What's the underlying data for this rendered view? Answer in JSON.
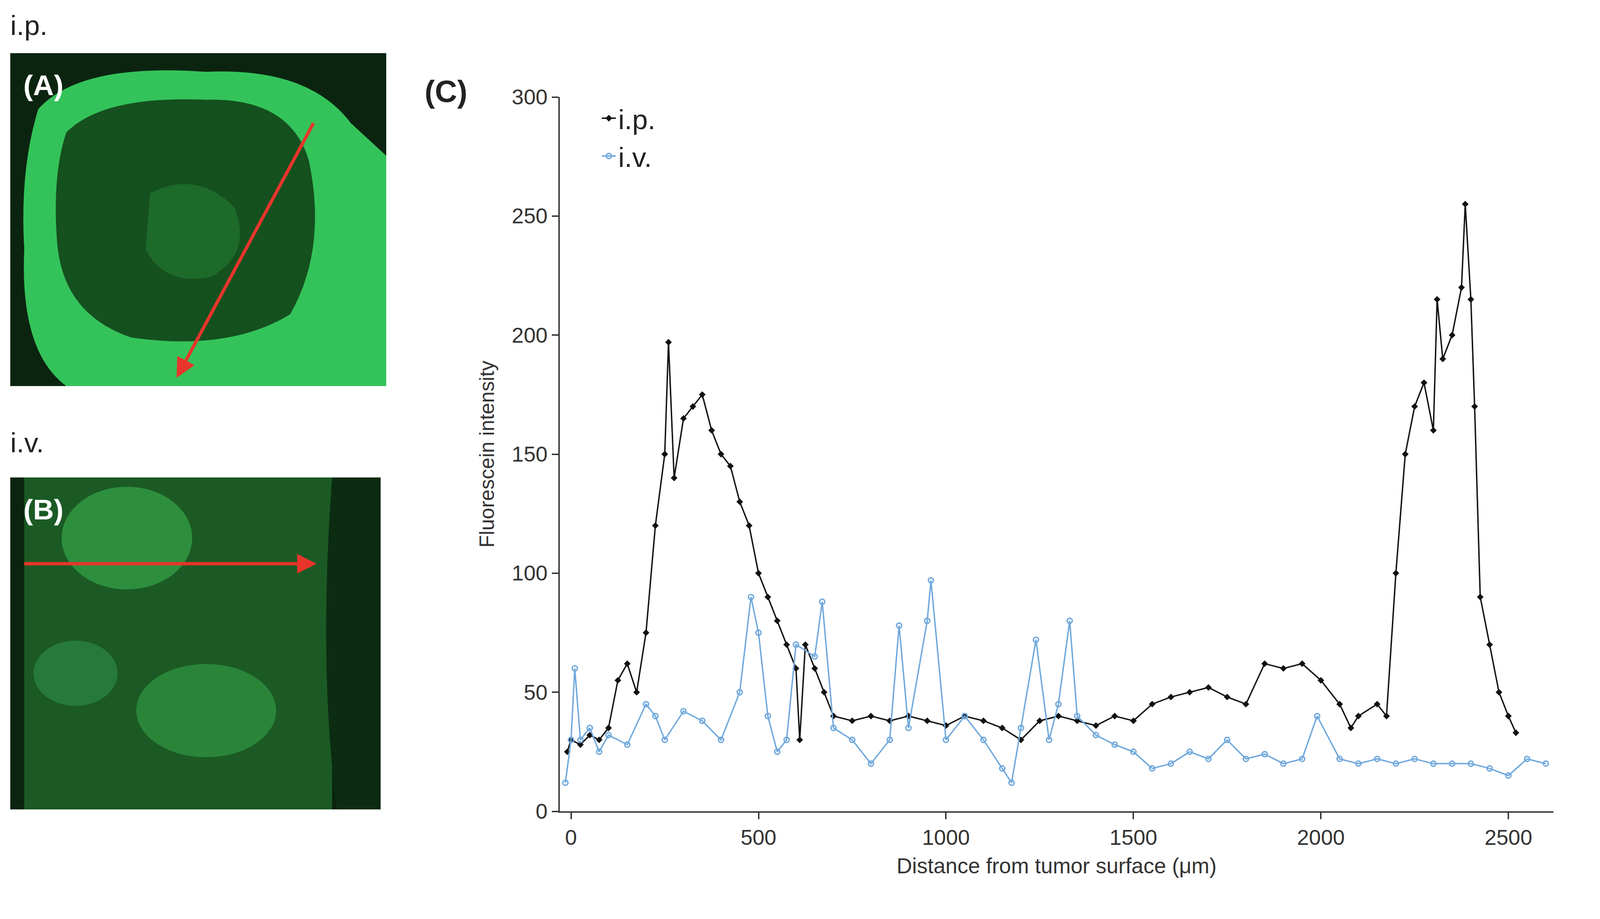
{
  "panels": [
    {
      "heading": "i.p.",
      "label": "(A)"
    },
    {
      "heading": "i.v.",
      "label": "(B)"
    }
  ],
  "chart_data": {
    "type": "line",
    "title": "(C)",
    "x_label": "Distance from tumor surface (μm)",
    "y_label": "Fluorescein intensity",
    "xlim": [
      -30,
      2620
    ],
    "ylim": [
      0,
      300
    ],
    "xticks": [
      0,
      500,
      1000,
      1500,
      2000,
      2500
    ],
    "yticks": [
      0,
      50,
      100,
      150,
      200,
      250,
      300
    ],
    "grid": false,
    "legend": "upper left",
    "series": [
      {
        "name": "i.p.",
        "color": "#111111",
        "marker": "diamond",
        "line_style": "solid",
        "x": [
          -10,
          0,
          25,
          50,
          75,
          100,
          125,
          150,
          175,
          200,
          225,
          250,
          260,
          275,
          300,
          325,
          350,
          375,
          400,
          425,
          450,
          475,
          500,
          525,
          550,
          575,
          600,
          610,
          625,
          650,
          675,
          700,
          750,
          800,
          850,
          900,
          950,
          1000,
          1050,
          1100,
          1150,
          1200,
          1250,
          1300,
          1350,
          1400,
          1450,
          1500,
          1550,
          1600,
          1650,
          1700,
          1750,
          1800,
          1850,
          1900,
          1950,
          2000,
          2050,
          2080,
          2100,
          2150,
          2175,
          2200,
          2225,
          2250,
          2275,
          2300,
          2310,
          2325,
          2350,
          2375,
          2385,
          2400,
          2410,
          2425,
          2450,
          2475,
          2500,
          2520
        ],
        "values": [
          25,
          30,
          28,
          32,
          30,
          35,
          55,
          62,
          50,
          75,
          120,
          150,
          197,
          140,
          165,
          170,
          175,
          160,
          150,
          145,
          130,
          120,
          100,
          90,
          80,
          70,
          60,
          30,
          70,
          60,
          50,
          40,
          38,
          40,
          38,
          40,
          38,
          36,
          40,
          38,
          35,
          30,
          38,
          40,
          38,
          36,
          40,
          38,
          45,
          48,
          50,
          52,
          48,
          45,
          62,
          60,
          62,
          55,
          45,
          35,
          40,
          45,
          40,
          100,
          150,
          170,
          180,
          160,
          215,
          190,
          200,
          220,
          255,
          215,
          170,
          90,
          70,
          50,
          40,
          33
        ]
      },
      {
        "name": "i.v.",
        "color": "#6fa8dc",
        "marker": "circle-open",
        "line_style": "solid",
        "x": [
          -15,
          0,
          10,
          25,
          50,
          75,
          100,
          150,
          200,
          225,
          250,
          300,
          350,
          400,
          450,
          480,
          500,
          525,
          550,
          575,
          600,
          650,
          670,
          700,
          750,
          800,
          850,
          875,
          900,
          950,
          960,
          1000,
          1050,
          1100,
          1150,
          1175,
          1200,
          1240,
          1275,
          1300,
          1330,
          1350,
          1400,
          1450,
          1500,
          1550,
          1600,
          1650,
          1700,
          1750,
          1800,
          1850,
          1900,
          1950,
          1990,
          2050,
          2100,
          2150,
          2200,
          2250,
          2300,
          2350,
          2400,
          2450,
          2500,
          2550,
          2600
        ],
        "values": [
          12,
          30,
          60,
          30,
          35,
          25,
          32,
          28,
          45,
          40,
          30,
          42,
          38,
          30,
          50,
          90,
          75,
          40,
          25,
          30,
          70,
          65,
          88,
          35,
          30,
          20,
          30,
          78,
          35,
          80,
          97,
          30,
          40,
          30,
          18,
          12,
          35,
          72,
          30,
          45,
          80,
          40,
          32,
          28,
          25,
          18,
          20,
          25,
          22,
          30,
          22,
          24,
          20,
          22,
          40,
          22,
          20,
          22,
          20,
          22,
          20,
          20,
          20,
          18,
          15,
          22,
          20
        ]
      }
    ]
  }
}
